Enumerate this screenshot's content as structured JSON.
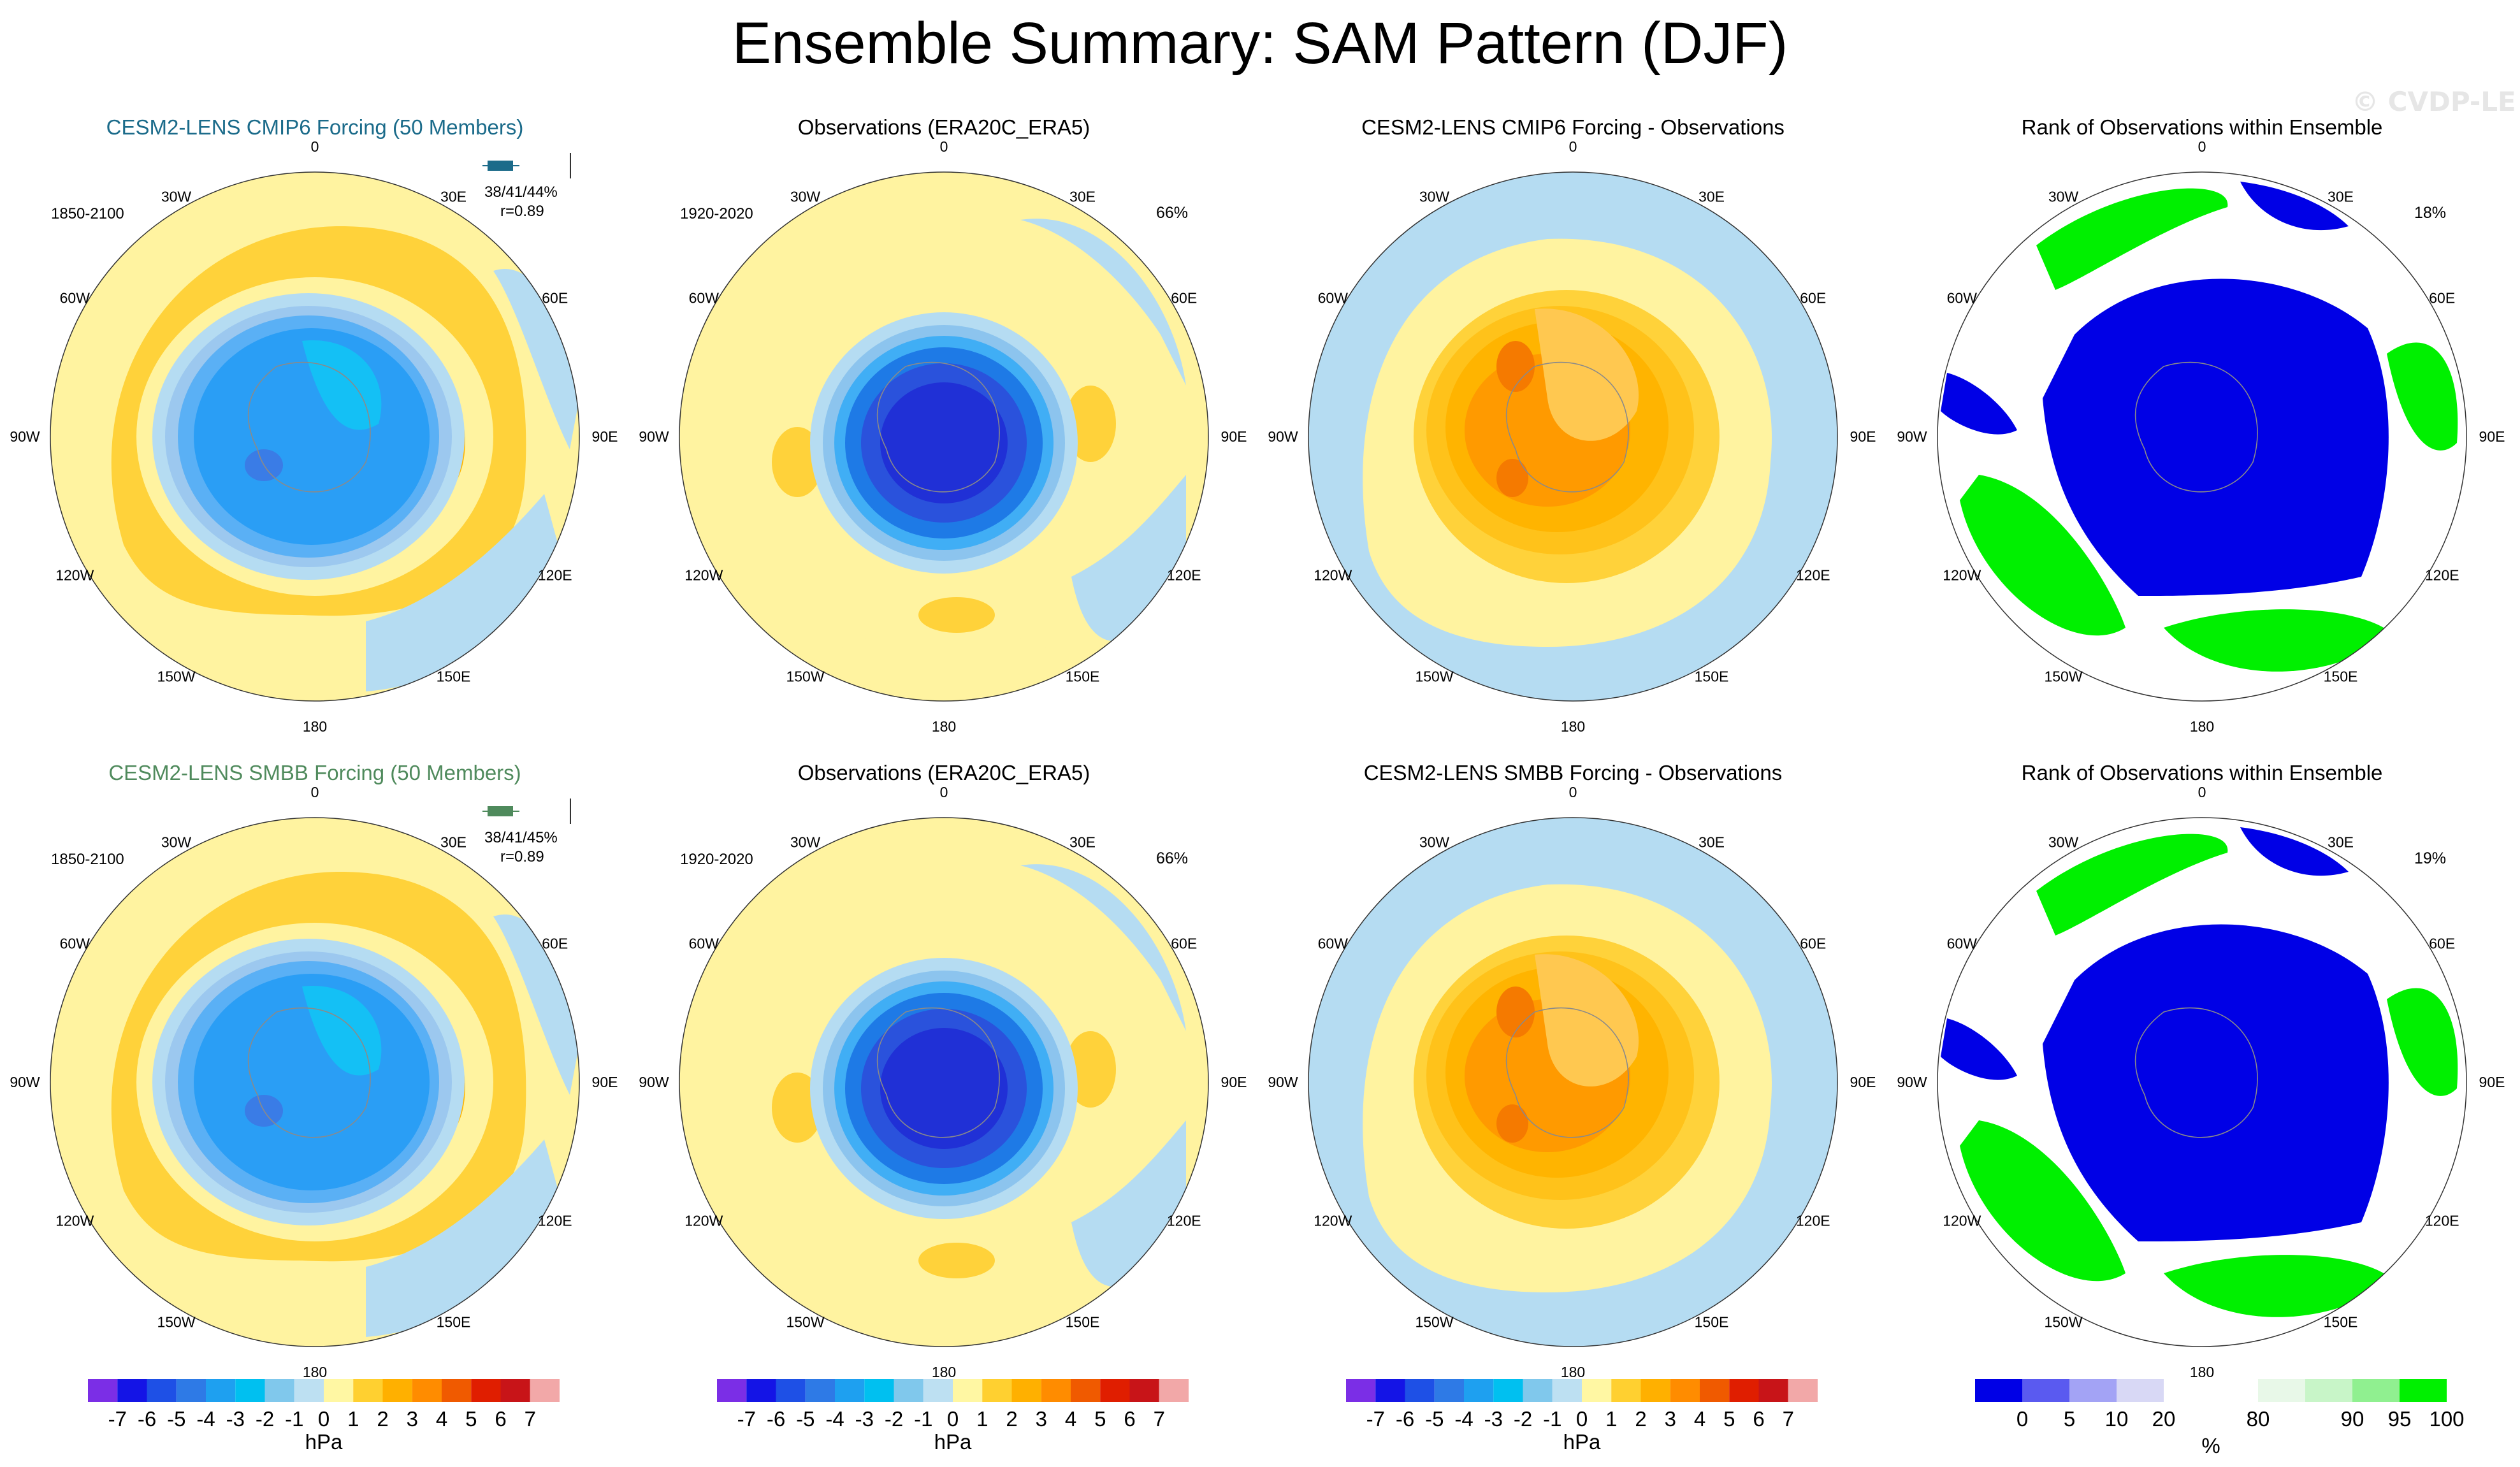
{
  "title": "Ensemble Summary: SAM Pattern (DJF)",
  "watermark": "© CVDP-LE",
  "chart_data": [
    {
      "type": "polar-contour",
      "panel": "CESM2-LENS CMIP6 Forcing ensemble mean",
      "title": "CESM2-LENS CMIP6 Forcing (50 Members)",
      "period": "1850-2100",
      "stat": "38/41/44%",
      "corr": "r=0.89",
      "kind": "model",
      "title_color": "#1b6b8a",
      "units": "hPa",
      "levels": [
        -7,
        -6,
        -5,
        -4,
        -3,
        -2,
        -1,
        0,
        1,
        2,
        3,
        4,
        5,
        6,
        7
      ]
    },
    {
      "type": "polar-contour",
      "panel": "Observations",
      "title": "Observations (ERA20C_ERA5)",
      "period": "1920-2020",
      "percent": "66%",
      "kind": "obs",
      "units": "hPa"
    },
    {
      "type": "polar-contour",
      "panel": "Model minus observations",
      "title": "CESM2-LENS CMIP6 Forcing - Observations",
      "kind": "diff",
      "units": "hPa"
    },
    {
      "type": "polar-contour",
      "panel": "Rank",
      "title": "Rank of Observations within Ensemble",
      "percent": "18%",
      "kind": "rank",
      "units": "%"
    },
    {
      "type": "polar-contour",
      "panel": "CESM2-LENS SMBB Forcing ensemble mean",
      "title": "CESM2-LENS SMBB Forcing (50 Members)",
      "period": "1850-2100",
      "stat": "38/41/45%",
      "corr": "r=0.89",
      "kind": "model",
      "title_color": "#4f8a5c",
      "units": "hPa"
    },
    {
      "type": "polar-contour",
      "panel": "Observations",
      "title": "Observations (ERA20C_ERA5)",
      "period": "1920-2020",
      "percent": "66%",
      "kind": "obs",
      "units": "hPa"
    },
    {
      "type": "polar-contour",
      "panel": "Model minus observations",
      "title": "CESM2-LENS SMBB Forcing - Observations",
      "kind": "diff",
      "units": "hPa"
    },
    {
      "type": "polar-contour",
      "panel": "Rank",
      "title": "Rank of Observations within Ensemble",
      "percent": "19%",
      "kind": "rank",
      "units": "%"
    }
  ],
  "lon_labels": [
    "0",
    "30E",
    "60E",
    "90E",
    "120E",
    "150E",
    "180",
    "150W",
    "120W",
    "90W",
    "60W",
    "30W"
  ],
  "hpa_colorbar": {
    "colors": [
      "#7b2ee6",
      "#1414e6",
      "#1e50e6",
      "#2e7ae6",
      "#1ea0f0",
      "#00c0f0",
      "#80c8ec",
      "#bde0f2",
      "#fff7a3",
      "#ffd030",
      "#ffb000",
      "#ff8c00",
      "#f05a00",
      "#e01e00",
      "#c81418",
      "#f2a8a8"
    ],
    "labels": [
      "-7",
      "-6",
      "-5",
      "-4",
      "-3",
      "-2",
      "-1",
      "0",
      "1",
      "2",
      "3",
      "4",
      "5",
      "6",
      "7"
    ],
    "unit": "hPa"
  },
  "rank_colorbar": {
    "colors": [
      "#0000e6",
      "#5a5af0",
      "#a3a3f5",
      "#d8d8f5",
      "#ffffff",
      "#ffffff",
      "#e8f8e8",
      "#c8f5c8",
      "#90f090",
      "#00f000"
    ],
    "labels": [
      "0",
      "5",
      "10",
      "20",
      "80",
      "90",
      "95",
      "100"
    ],
    "label_positions": [
      1,
      2,
      3,
      4,
      6,
      8,
      9,
      10
    ],
    "unit": "%"
  }
}
